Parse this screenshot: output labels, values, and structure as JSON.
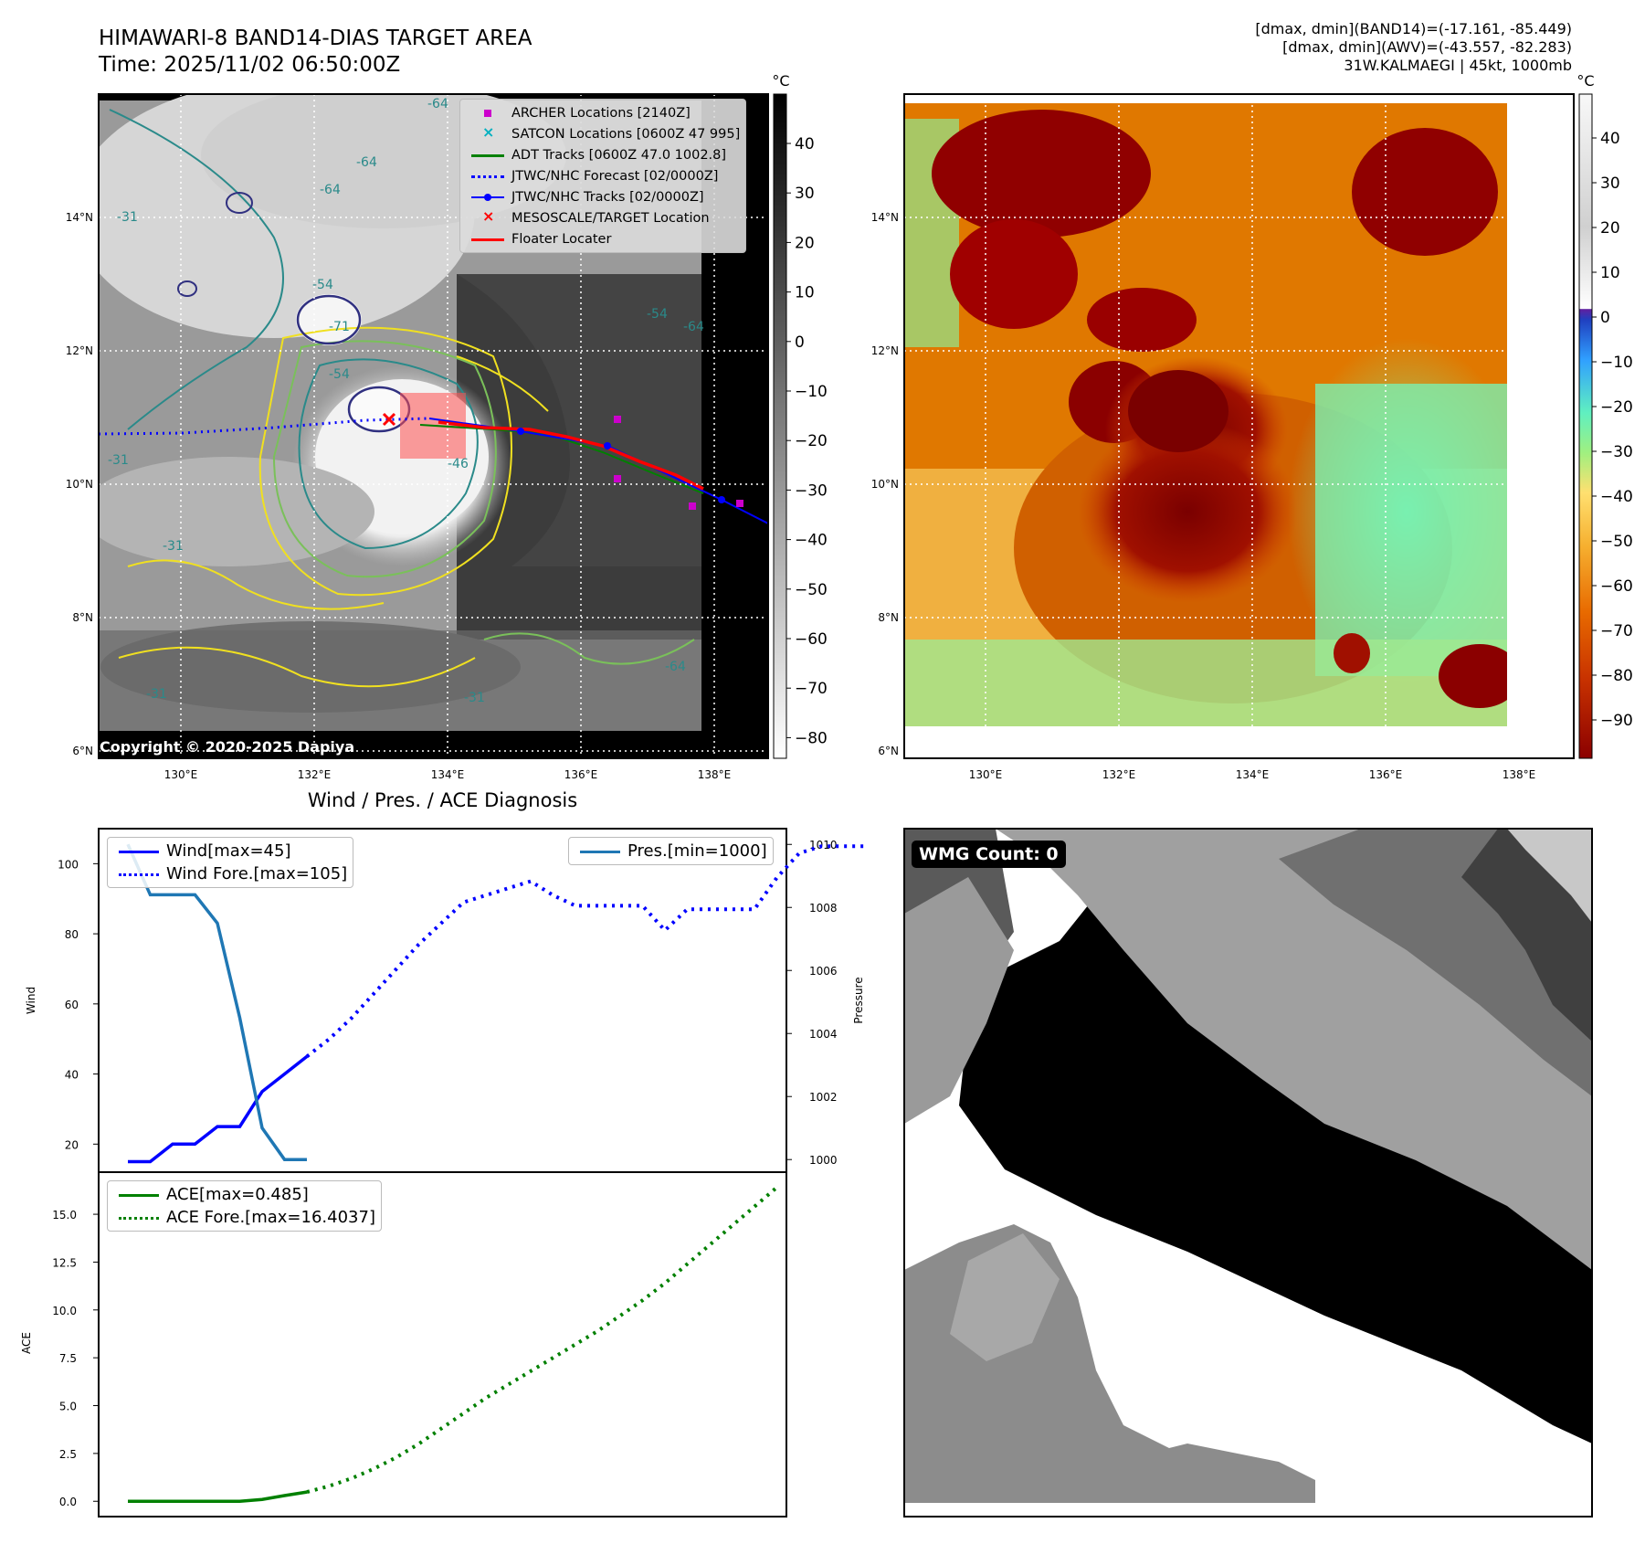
{
  "header": {
    "title": "HIMAWARI-8 BAND14-DIAS TARGET AREA",
    "time": "Time: 2025/11/02 06:50:00Z",
    "stats": [
      "[dmax, dmin](BAND14)=(-17.161, -85.449)",
      "[dmax, dmin](AWV)=(-43.557, -82.283)",
      "31W.KALMAEGI | 45kt, 1000mb"
    ]
  },
  "copyright": "Copyright © 2020-2025 Dapiya",
  "map_legend": [
    {
      "label": "ARCHER Locations [2140Z]",
      "color": "#cc00cc",
      "marker": "square"
    },
    {
      "label": "SATCON Locations [0600Z 47 995]",
      "color": "#00b0c0",
      "marker": "x"
    },
    {
      "label": "ADT Tracks [0600Z 47.0 1002.8]",
      "color": "#008000",
      "marker": "line"
    },
    {
      "label": "JTWC/NHC Forecast [02/0000Z]",
      "color": "#0000ff",
      "marker": "dots"
    },
    {
      "label": "JTWC/NHC Tracks [02/0000Z]",
      "color": "#0000ff",
      "marker": "line-dot"
    },
    {
      "label": "MESOSCALE/TARGET Location",
      "color": "#ff0000",
      "marker": "x"
    },
    {
      "label": "Floater Locater",
      "color": "#ff0000",
      "marker": "line"
    }
  ],
  "colors": {
    "adt": "#008000",
    "jtwc": "#0000ff",
    "archer": "#cc00cc",
    "satcon": "#00b0c0",
    "target": "#ff0000",
    "pressure": "#1f77b4",
    "wind": "#0000ff",
    "ace": "#008000"
  },
  "map_axes": {
    "lat_ticks": [
      "6°N",
      "8°N",
      "10°N",
      "12°N",
      "14°N"
    ],
    "lon_ticks": [
      "130°E",
      "132°E",
      "134°E",
      "136°E",
      "138°E"
    ]
  },
  "colorbar_gray": {
    "unit": "°C",
    "ticks": [
      "40",
      "30",
      "20",
      "10",
      "0",
      "−10",
      "−20",
      "−30",
      "−40",
      "−50",
      "−60",
      "−70",
      "−80"
    ]
  },
  "colorbar_color": {
    "unit": "°C",
    "ticks": [
      "40",
      "30",
      "20",
      "10",
      "0",
      "−10",
      "−20",
      "−30",
      "−40",
      "−50",
      "−60",
      "−70",
      "−80",
      "−90"
    ]
  },
  "contour_labels": [
    "-64",
    "-64",
    "-64",
    "-54",
    "-54",
    "-64",
    "-31",
    "-31",
    "-31",
    "-31",
    "-31",
    "-54",
    "-71",
    "-46",
    "-64"
  ],
  "mid_title": "Wind / Pres. / ACE Diagnosis",
  "wmg": "WMG Count: 0",
  "chart_data": [
    {
      "type": "line",
      "title": "Wind / Pres. / ACE Diagnosis",
      "ylabel": "Wind",
      "y2label": "Pressure",
      "ylim": [
        12,
        110
      ],
      "y2lim": [
        999.6,
        1010.5
      ],
      "yticks": [
        20,
        40,
        60,
        80,
        100
      ],
      "y2ticks": [
        1000,
        1002,
        1004,
        1006,
        1008,
        1010
      ],
      "legend_left": [
        "Wind[max=45]",
        "Wind Fore.[max=105]"
      ],
      "legend_right": [
        "Pres.[min=1000]"
      ],
      "series": [
        {
          "name": "Wind[max=45]",
          "axis": "left",
          "style": "solid",
          "x": [
            0,
            1,
            2,
            3,
            4,
            5,
            6,
            7,
            8
          ],
          "values": [
            15,
            15,
            20,
            20,
            25,
            25,
            35,
            40,
            45
          ]
        },
        {
          "name": "Wind Fore.[max=105]",
          "axis": "left",
          "style": "dotted",
          "x": [
            8,
            9,
            10,
            11,
            12,
            13,
            14,
            15,
            16,
            17,
            18,
            19,
            20,
            21,
            22,
            23,
            24,
            25,
            26,
            27,
            28,
            29,
            30,
            31,
            32,
            33
          ],
          "values": [
            45,
            50,
            56,
            63,
            70,
            77,
            83,
            89,
            91,
            93,
            95,
            91,
            88,
            88,
            88,
            88,
            81,
            87,
            87,
            87,
            87,
            96,
            103,
            105,
            105,
            105
          ]
        },
        {
          "name": "Pres.[min=1000]",
          "axis": "right",
          "style": "solid",
          "x": [
            0,
            1,
            2,
            3,
            4,
            5,
            6,
            7,
            8
          ],
          "values": [
            1010,
            1008.4,
            1008.4,
            1008.4,
            1007.5,
            1004.5,
            1001,
            1000,
            1000
          ]
        }
      ]
    },
    {
      "type": "line",
      "ylabel": "ACE",
      "ylim": [
        -0.8,
        17.2
      ],
      "yticks": [
        0.0,
        2.5,
        5.0,
        7.5,
        10.0,
        12.5,
        15.0
      ],
      "ytick_labels": [
        "0.0",
        "2.5",
        "5.0",
        "7.5",
        "10.0",
        "12.5",
        "15.0"
      ],
      "series": [
        {
          "name": "ACE[max=0.485]",
          "style": "solid",
          "x": [
            0,
            1,
            2,
            3,
            4,
            5,
            6,
            7,
            8
          ],
          "values": [
            0,
            0,
            0,
            0,
            0,
            0,
            0.1,
            0.3,
            0.485
          ]
        },
        {
          "name": "ACE Fore.[max=16.4037]",
          "style": "dotted",
          "x": [
            8,
            9,
            10,
            11,
            12,
            13,
            14,
            15,
            16,
            17,
            18,
            19,
            20,
            21,
            22,
            23,
            24,
            25,
            26,
            27,
            28,
            29
          ],
          "values": [
            0.485,
            0.8,
            1.2,
            1.7,
            2.3,
            3.0,
            3.8,
            4.6,
            5.4,
            6.1,
            6.8,
            7.5,
            8.2,
            8.9,
            9.7,
            10.5,
            11.4,
            12.4,
            13.4,
            14.4,
            15.4,
            16.4037
          ]
        }
      ]
    }
  ]
}
